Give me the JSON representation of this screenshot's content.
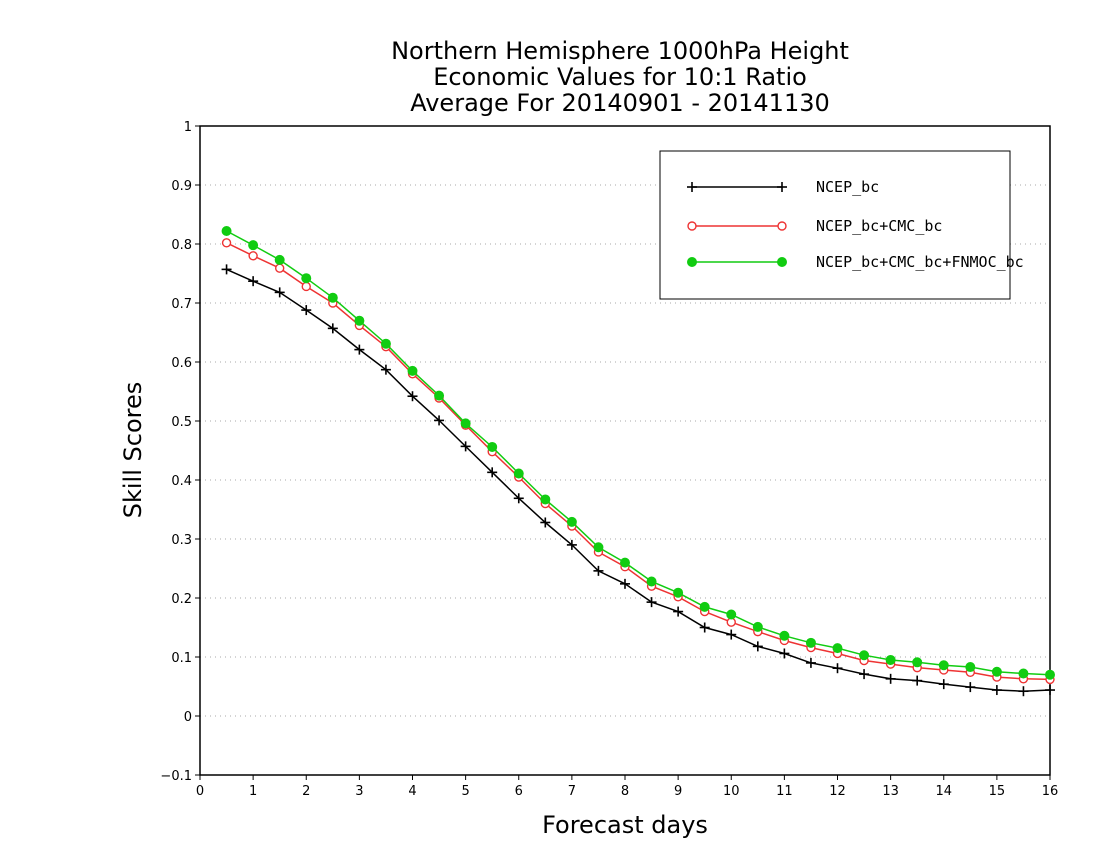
{
  "chart_data": {
    "type": "line",
    "title": [
      "Northern Hemisphere 1000hPa Height",
      "Economic Values for 10:1 Ratio",
      "Average For 20140901 - 20141130"
    ],
    "xlabel": "Forecast days",
    "ylabel": "Skill Scores",
    "xlim": [
      0,
      16
    ],
    "ylim": [
      -0.1,
      1
    ],
    "xticks": [
      0,
      1,
      2,
      3,
      4,
      5,
      6,
      7,
      8,
      9,
      10,
      11,
      12,
      13,
      14,
      15,
      16
    ],
    "yticks": [
      -0.1,
      0,
      0.1,
      0.2,
      0.3,
      0.4,
      0.5,
      0.6,
      0.7,
      0.8,
      0.9,
      1
    ],
    "ytick_labels": [
      "−0.1",
      "0",
      "0.1",
      "0.2",
      "0.3",
      "0.4",
      "0.5",
      "0.6",
      "0.7",
      "0.8",
      "0.9",
      "1"
    ],
    "grid": true,
    "legend_position": "top-right",
    "x": [
      0.5,
      1,
      1.5,
      2,
      2.5,
      3,
      3.5,
      4,
      4.5,
      5,
      5.5,
      6,
      6.5,
      7,
      7.5,
      8,
      8.5,
      9,
      9.5,
      10,
      10.5,
      11,
      11.5,
      12,
      12.5,
      13,
      13.5,
      14,
      14.5,
      15,
      15.5,
      16
    ],
    "series": [
      {
        "name": "NCEP_bc",
        "color": "#000000",
        "marker": "plus",
        "values": [
          0.757,
          0.737,
          0.718,
          0.688,
          0.657,
          0.621,
          0.587,
          0.542,
          0.501,
          0.457,
          0.413,
          0.369,
          0.328,
          0.29,
          0.246,
          0.224,
          0.193,
          0.177,
          0.15,
          0.138,
          0.118,
          0.106,
          0.09,
          0.081,
          0.071,
          0.063,
          0.06,
          0.054,
          0.049,
          0.044,
          0.042,
          0.044
        ]
      },
      {
        "name": "NCEP_bc+CMC_bc",
        "color": "#ee3333",
        "marker": "open-circle",
        "values": [
          0.802,
          0.78,
          0.759,
          0.728,
          0.7,
          0.662,
          0.626,
          0.58,
          0.539,
          0.493,
          0.448,
          0.405,
          0.36,
          0.322,
          0.278,
          0.253,
          0.22,
          0.202,
          0.177,
          0.159,
          0.143,
          0.128,
          0.116,
          0.106,
          0.094,
          0.088,
          0.082,
          0.078,
          0.074,
          0.066,
          0.063,
          0.062
        ]
      },
      {
        "name": "NCEP_bc+CMC_bc+FNMOC_bc",
        "color": "#11cc11",
        "marker": "filled-circle",
        "values": [
          0.822,
          0.798,
          0.773,
          0.742,
          0.709,
          0.67,
          0.631,
          0.585,
          0.543,
          0.496,
          0.456,
          0.411,
          0.367,
          0.329,
          0.286,
          0.26,
          0.228,
          0.209,
          0.185,
          0.172,
          0.151,
          0.136,
          0.124,
          0.115,
          0.103,
          0.095,
          0.091,
          0.086,
          0.083,
          0.075,
          0.072,
          0.07
        ]
      }
    ]
  }
}
